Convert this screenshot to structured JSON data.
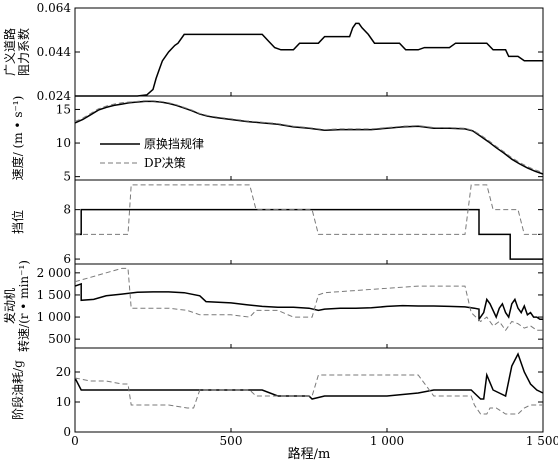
{
  "chart_data": {
    "type": "line",
    "xlabel": "路程/m",
    "xlim": [
      0,
      1500
    ],
    "xticks": [
      0,
      500,
      1000,
      1500
    ],
    "xtick_labels": [
      "0",
      "500",
      "1 000",
      "1 500"
    ],
    "legend": {
      "placement": "inside speed panel, upper-left",
      "entries": [
        {
          "label": "原换挡规律",
          "style": "solid"
        },
        {
          "label": "DP决策",
          "style": "dashed"
        }
      ]
    },
    "panels": [
      {
        "key": "resist",
        "ylabel_lines": [
          "广义道路",
          "阻力系数"
        ],
        "ylim": [
          0.024,
          0.064
        ],
        "yticks": [
          0.024,
          0.044,
          0.064
        ],
        "ytick_labels": [
          "0.024",
          "0.044",
          "0.064"
        ],
        "series": [
          {
            "style": "solid",
            "x": [
              0,
              60,
              120,
              180,
              200,
              230,
              250,
              260,
              270,
              280,
              300,
              320,
              330,
              350,
              380,
              400,
              450,
              500,
              550,
              570,
              590,
              600,
              620,
              640,
              660,
              680,
              700,
              720,
              740,
              760,
              780,
              800,
              820,
              840,
              860,
              880,
              890,
              900,
              910,
              920,
              940,
              960,
              980,
              1000,
              1020,
              1040,
              1060,
              1080,
              1100,
              1120,
              1140,
              1160,
              1180,
              1200,
              1220,
              1250,
              1260,
              1280,
              1300,
              1320,
              1340,
              1360,
              1380,
              1390,
              1400,
              1420,
              1440,
              1460,
              1480,
              1500
            ],
            "y": [
              0.024,
              0.024,
              0.024,
              0.024,
              0.024,
              0.0245,
              0.027,
              0.032,
              0.036,
              0.04,
              0.044,
              0.047,
              0.048,
              0.052,
              0.052,
              0.052,
              0.052,
              0.052,
              0.052,
              0.052,
              0.052,
              0.052,
              0.049,
              0.046,
              0.045,
              0.045,
              0.045,
              0.048,
              0.048,
              0.048,
              0.048,
              0.051,
              0.051,
              0.051,
              0.051,
              0.051,
              0.055,
              0.057,
              0.057,
              0.055,
              0.052,
              0.048,
              0.048,
              0.048,
              0.048,
              0.048,
              0.045,
              0.045,
              0.045,
              0.046,
              0.046,
              0.046,
              0.046,
              0.046,
              0.048,
              0.048,
              0.048,
              0.048,
              0.048,
              0.048,
              0.045,
              0.045,
              0.045,
              0.042,
              0.042,
              0.042,
              0.04,
              0.04,
              0.04,
              0.04
            ]
          }
        ]
      },
      {
        "key": "speed",
        "ylabel_lines": [
          "速度/ (m • s⁻¹)"
        ],
        "ylim": [
          4.5,
          17
        ],
        "yticks": [
          5,
          10,
          15
        ],
        "ytick_labels": [
          "5",
          "10",
          "15"
        ],
        "series": [
          {
            "style": "solid",
            "x": [
              0,
              25,
              50,
              75,
              100,
              125,
              150,
              175,
              200,
              225,
              250,
              275,
              300,
              325,
              350,
              375,
              400,
              425,
              450,
              500,
              550,
              600,
              650,
              700,
              750,
              800,
              850,
              900,
              950,
              1000,
              1050,
              1100,
              1150,
              1200,
              1250,
              1275,
              1300,
              1325,
              1350,
              1375,
              1400,
              1425,
              1450,
              1475,
              1500
            ],
            "y": [
              13.0,
              13.5,
              14.2,
              14.9,
              15.3,
              15.6,
              15.8,
              16.0,
              16.1,
              16.2,
              16.2,
              16.1,
              15.9,
              15.6,
              15.2,
              14.8,
              14.3,
              14.0,
              13.8,
              13.5,
              13.2,
              13.0,
              12.8,
              12.4,
              12.2,
              11.9,
              12.0,
              12.0,
              12.0,
              12.2,
              12.4,
              12.5,
              12.2,
              12.2,
              12.1,
              11.8,
              11.0,
              10.2,
              9.3,
              8.5,
              7.6,
              6.9,
              6.3,
              5.8,
              5.4
            ]
          },
          {
            "style": "dashed",
            "x": [
              0,
              25,
              50,
              75,
              100,
              125,
              150,
              175,
              200,
              225,
              250,
              275,
              300,
              325,
              350,
              375,
              400,
              425,
              450,
              500,
              550,
              600,
              650,
              700,
              750,
              800,
              850,
              900,
              950,
              1000,
              1050,
              1100,
              1150,
              1200,
              1250,
              1275,
              1300,
              1325,
              1350,
              1375,
              1400,
              1425,
              1450,
              1475,
              1500
            ],
            "y": [
              13.2,
              13.7,
              14.4,
              15.1,
              15.5,
              15.8,
              16.0,
              16.1,
              16.2,
              16.3,
              16.3,
              16.2,
              16.0,
              15.7,
              15.3,
              14.9,
              14.4,
              14.1,
              13.9,
              13.6,
              13.3,
              13.1,
              12.9,
              12.5,
              12.3,
              12.0,
              12.1,
              12.1,
              12.1,
              12.3,
              12.5,
              12.6,
              12.3,
              12.3,
              12.2,
              11.9,
              11.2,
              10.4,
              9.5,
              8.7,
              7.8,
              7.1,
              6.5,
              6.0,
              5.6
            ]
          }
        ]
      },
      {
        "key": "gear",
        "ylabel_lines": [
          "挡位"
        ],
        "ylim": [
          5.8,
          9.2
        ],
        "yticks": [
          6,
          7,
          8
        ],
        "ytick_labels": [
          "6",
          "",
          "8"
        ],
        "series": [
          {
            "style": "solid",
            "x": [
              0,
              20,
              20,
              1295,
              1295,
              1395,
              1395,
              1500
            ],
            "y": [
              7,
              7,
              8,
              8,
              7,
              7,
              6,
              6
            ]
          },
          {
            "style": "dashed",
            "x": [
              0,
              170,
              180,
              560,
              580,
              760,
              780,
              1250,
              1270,
              1320,
              1340,
              1420,
              1440,
              1500
            ],
            "y": [
              7,
              7,
              9,
              9,
              8,
              8,
              7,
              7,
              9,
              9,
              8,
              8,
              7,
              7
            ]
          }
        ]
      },
      {
        "key": "rpm",
        "ylabel_lines": [
          "发动机",
          "转速/(r • min⁻¹)"
        ],
        "ylim": [
          300,
          2200
        ],
        "yticks": [
          500,
          1000,
          1500,
          2000
        ],
        "ytick_labels": [
          "500",
          "1 000",
          "1 500",
          "2 000"
        ],
        "series": [
          {
            "style": "solid",
            "x": [
              0,
              20,
              20,
              60,
              100,
              150,
              200,
              250,
              300,
              350,
              400,
              420,
              500,
              550,
              600,
              650,
              700,
              750,
              780,
              800,
              850,
              900,
              950,
              1000,
              1050,
              1100,
              1150,
              1200,
              1250,
              1280,
              1295,
              1295,
              1310,
              1320,
              1330,
              1350,
              1360,
              1370,
              1380,
              1390,
              1400,
              1410,
              1420,
              1430,
              1440,
              1450,
              1460,
              1470,
              1480,
              1490,
              1500
            ],
            "y": [
              1700,
              1750,
              1380,
              1400,
              1480,
              1520,
              1560,
              1570,
              1570,
              1550,
              1480,
              1350,
              1320,
              1280,
              1240,
              1220,
              1220,
              1200,
              1150,
              1180,
              1200,
              1200,
              1210,
              1240,
              1260,
              1250,
              1250,
              1240,
              1230,
              1200,
              1180,
              950,
              1100,
              1400,
              1300,
              1000,
              1200,
              1300,
              1100,
              1000,
              1300,
              1400,
              1200,
              1100,
              1250,
              1050,
              1100,
              1000,
              1000,
              950,
              950
            ]
          },
          {
            "style": "dashed",
            "x": [
              0,
              50,
              100,
              150,
              170,
              180,
              200,
              300,
              360,
              400,
              500,
              560,
              580,
              650,
              700,
              760,
              780,
              800,
              900,
              1000,
              1100,
              1150,
              1250,
              1270,
              1300,
              1320,
              1340,
              1360,
              1380,
              1400,
              1420,
              1440,
              1460,
              1480,
              1500
            ],
            "y": [
              1800,
              1900,
              2000,
              2100,
              2100,
              1200,
              1200,
              1200,
              1150,
              1050,
              1050,
              1000,
              1150,
              1150,
              1000,
              1000,
              1500,
              1550,
              1600,
              1650,
              1700,
              1700,
              1700,
              1100,
              900,
              1000,
              800,
              900,
              700,
              900,
              850,
              750,
              800,
              700,
              700
            ]
          }
        ]
      },
      {
        "key": "fuel",
        "ylabel_lines": [
          "阶段油耗/g"
        ],
        "ylim": [
          0,
          28
        ],
        "yticks": [
          0,
          10,
          20
        ],
        "ytick_labels": [
          "0",
          "10",
          "20"
        ],
        "series": [
          {
            "style": "solid",
            "x": [
              0,
              20,
              40,
              100,
              200,
              300,
              400,
              450,
              500,
              550,
              600,
              650,
              700,
              750,
              760,
              800,
              850,
              900,
              1000,
              1100,
              1150,
              1200,
              1250,
              1270,
              1300,
              1310,
              1320,
              1340,
              1360,
              1380,
              1400,
              1420,
              1440,
              1460,
              1480,
              1500
            ],
            "y": [
              18,
              14,
              14,
              14,
              14,
              14,
              14,
              14,
              14,
              14,
              14,
              12,
              12,
              12,
              11,
              12,
              12,
              12,
              12,
              13,
              14,
              14,
              14,
              14,
              11,
              11,
              19,
              14,
              13,
              12,
              22,
              26,
              20,
              16,
              14,
              13
            ]
          },
          {
            "style": "dashed",
            "x": [
              0,
              50,
              100,
              150,
              170,
              180,
              200,
              300,
              360,
              380,
              400,
              500,
              560,
              580,
              700,
              760,
              780,
              800,
              1000,
              1100,
              1150,
              1250,
              1270,
              1280,
              1300,
              1320,
              1330,
              1350,
              1380,
              1400,
              1420,
              1440,
              1460,
              1480,
              1500
            ],
            "y": [
              18,
              17,
              17,
              16,
              16,
              9,
              9,
              9,
              8,
              8,
              14,
              14,
              14,
              12,
              12,
              12,
              19,
              19,
              19,
              19,
              12,
              12,
              12,
              9,
              6,
              6,
              8,
              8,
              6,
              6,
              6,
              8,
              9,
              9,
              9
            ]
          }
        ]
      }
    ]
  }
}
